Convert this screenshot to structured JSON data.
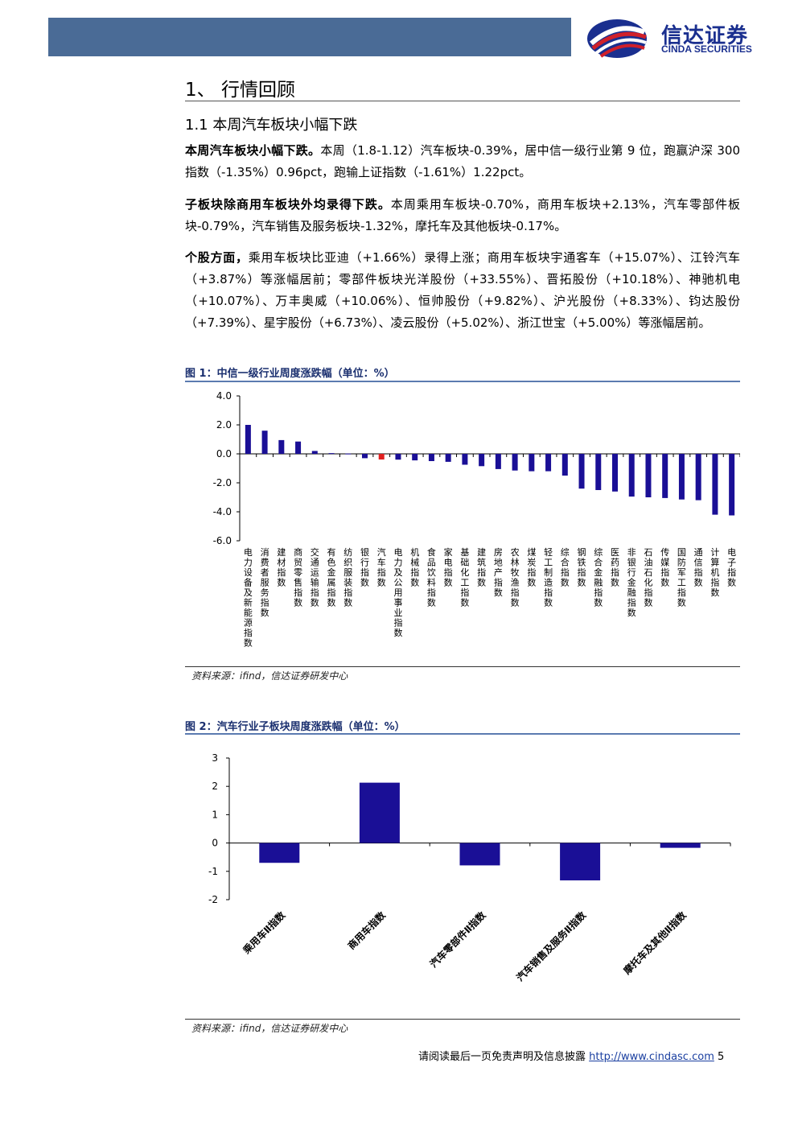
{
  "header": {
    "logo_cn": "信达证券",
    "logo_en": "CINDA SECURITIES"
  },
  "section": {
    "title": "1、 行情回顾",
    "subtitle": "1.1 本周汽车板块小幅下跌"
  },
  "paragraphs": [
    {
      "lead": "本周汽车板块小幅下跌。",
      "text": "本周（1.8-1.12）汽车板块-0.39%，居中信一级行业第 9 位，跑赢沪深 300 指数（-1.35%）0.96pct，跑输上证指数（-1.61%）1.22pct。"
    },
    {
      "lead": "子板块除商用车板块外均录得下跌。",
      "text": "本周乘用车板块-0.70%，商用车板块+2.13%，汽车零部件板块-0.79%，汽车销售及服务板块-1.32%，摩托车及其他板块-0.17%。"
    },
    {
      "lead": "个股方面，",
      "text": "乘用车板块比亚迪（+1.66%）录得上涨；商用车板块宇通客车（+15.07%）、江铃汽车（+3.87%）等涨幅居前；零部件板块光洋股份（+33.55%）、晋拓股份（+10.18%）、神驰机电（+10.07%）、万丰奥威（+10.06%）、恒帅股份（+9.82%）、沪光股份（+8.33%）、钧达股份（+7.39%）、星宇股份（+6.73%）、凌云股份（+5.02%）、浙江世宝（+5.00%）等涨幅居前。"
    }
  ],
  "figures": [
    {
      "title": "图 1：中信一级行业周度涨跌幅（单位：%）",
      "source": "资料来源：ifind，信达证券研发中心"
    },
    {
      "title": "图 2：汽车行业子板块周度涨跌幅（单位：%）",
      "source": "资料来源：ifind，信达证券研发中心"
    }
  ],
  "chart_data": [
    {
      "type": "bar",
      "categories": [
        "电力设备及新能源指数",
        "消费者服务指数",
        "建材指数",
        "商贸零售指数",
        "交通运输指数",
        "有色金属指数",
        "纺织服装指数",
        "银行指数",
        "汽车指数",
        "电力及公用事业指数",
        "机械指数",
        "食品饮料指数",
        "家电指数",
        "基础化工指数",
        "建筑指数",
        "房地产指数",
        "农林牧渔指数",
        "煤炭指数",
        "轻工制造指数",
        "综合指数",
        "钢铁指数",
        "综合金融指数",
        "医药指数",
        "非银行金融指数",
        "石油石化指数",
        "传媒指数",
        "国防军工指数",
        "通信指数",
        "计算机指数",
        "电子指数"
      ],
      "values": [
        2.0,
        1.6,
        0.95,
        0.85,
        0.2,
        0.05,
        0.02,
        -0.3,
        -0.39,
        -0.4,
        -0.45,
        -0.5,
        -0.55,
        -0.75,
        -0.85,
        -1.05,
        -1.15,
        -1.2,
        -1.2,
        -1.5,
        -2.4,
        -2.5,
        -2.6,
        -2.95,
        -3.0,
        -3.05,
        -3.15,
        -3.2,
        -4.2,
        -4.25
      ],
      "highlight_index": 8,
      "yticks": [
        "4.0",
        "2.0",
        "0.0",
        "-2.0",
        "-4.0",
        "-6.0"
      ],
      "ylim": [
        -6,
        4
      ],
      "colors": {
        "bar": "#1a0f96",
        "highlight": "#e02020"
      }
    },
    {
      "type": "bar",
      "categories": [
        "乘用车Ⅱ指数",
        "商用车指数",
        "汽车零部件Ⅱ指数",
        "汽车销售及服务Ⅱ指数",
        "摩托车及其他Ⅱ指数"
      ],
      "values": [
        -0.7,
        2.13,
        -0.79,
        -1.32,
        -0.17
      ],
      "yticks": [
        "3",
        "2",
        "1",
        "0",
        "-1",
        "-2"
      ],
      "ylim": [
        -2,
        3
      ],
      "colors": {
        "bar": "#1a0f96"
      }
    }
  ],
  "footer": {
    "disclaimer": "请阅读最后一页免责声明及信息披露",
    "url": "http://www.cindasc.com",
    "page": "5"
  }
}
